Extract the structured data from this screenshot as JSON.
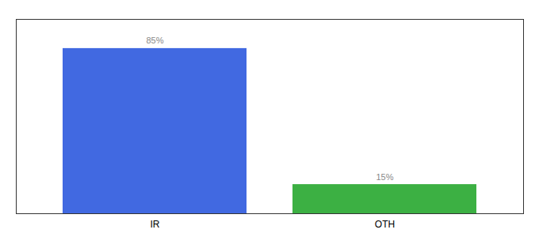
{
  "chart_data": {
    "type": "bar",
    "categories": [
      "IR",
      "OTH"
    ],
    "values": [
      85,
      15
    ],
    "colors": [
      "#4169e1",
      "#3cb043"
    ],
    "value_labels": [
      "85%",
      "15%"
    ],
    "data_labels": true,
    "ylim": [
      0,
      100
    ],
    "tick_labels": "x",
    "grid": false
  }
}
